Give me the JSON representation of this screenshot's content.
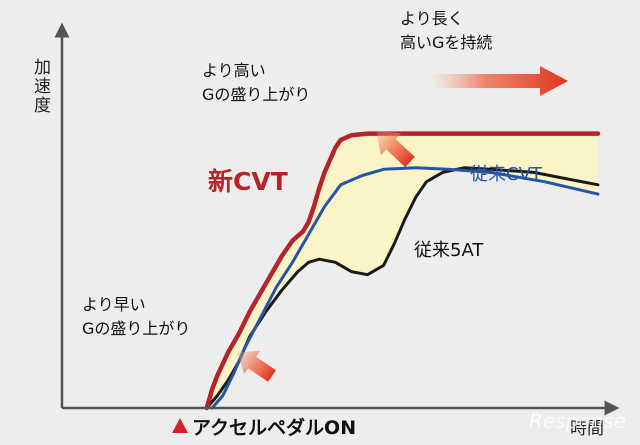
{
  "chart_data": {
    "type": "line",
    "ylabel": "加速度",
    "xlabel": "時間",
    "x_marker_label": "アクセルペダルON",
    "xlim": [
      0,
      100
    ],
    "ylim": [
      0,
      100
    ],
    "grid": false,
    "series": [
      {
        "name": "新CVT",
        "color": "#b5232b",
        "points": [
          [
            27,
            0
          ],
          [
            28,
            6
          ],
          [
            29,
            10.5
          ],
          [
            31,
            18
          ],
          [
            33,
            24
          ],
          [
            35,
            31
          ],
          [
            37,
            37
          ],
          [
            39,
            43
          ],
          [
            41,
            49
          ],
          [
            43,
            54
          ],
          [
            45,
            57
          ],
          [
            46,
            60
          ],
          [
            47,
            65
          ],
          [
            48,
            71
          ],
          [
            49,
            76
          ],
          [
            50,
            80
          ],
          [
            51,
            84
          ],
          [
            52,
            86.5
          ],
          [
            54,
            88
          ],
          [
            57,
            88.5
          ],
          [
            62,
            88.5
          ],
          [
            70,
            88.5
          ],
          [
            80,
            88.5
          ],
          [
            90,
            88.5
          ],
          [
            100,
            88.5
          ]
        ]
      },
      {
        "name": "従来CVT",
        "color": "#2455a6",
        "points": [
          [
            28,
            0
          ],
          [
            30,
            4
          ],
          [
            32,
            11
          ],
          [
            34,
            19
          ],
          [
            37,
            29
          ],
          [
            40,
            39
          ],
          [
            43,
            47
          ],
          [
            46,
            56
          ],
          [
            49,
            65
          ],
          [
            52,
            72
          ],
          [
            56,
            75
          ],
          [
            60,
            77
          ],
          [
            66,
            77.5
          ],
          [
            72,
            77
          ],
          [
            80,
            76
          ],
          [
            90,
            73
          ],
          [
            100,
            69
          ]
        ]
      },
      {
        "name": "従来5AT",
        "color": "#1a1a1a",
        "points": [
          [
            27,
            0
          ],
          [
            29,
            4
          ],
          [
            31,
            9
          ],
          [
            33,
            15
          ],
          [
            35,
            23
          ],
          [
            38,
            31
          ],
          [
            41,
            38
          ],
          [
            44,
            44
          ],
          [
            46,
            47
          ],
          [
            48,
            48
          ],
          [
            51,
            47
          ],
          [
            54,
            44
          ],
          [
            57,
            43
          ],
          [
            60,
            46
          ],
          [
            62,
            53
          ],
          [
            64,
            61
          ],
          [
            66,
            68
          ],
          [
            68,
            73
          ],
          [
            71,
            76
          ],
          [
            75,
            77.5
          ],
          [
            80,
            77
          ],
          [
            88,
            76
          ],
          [
            94,
            74
          ],
          [
            100,
            72
          ]
        ]
      }
    ],
    "band": {
      "color": "#fbf4c6",
      "between": [
        "新CVT",
        "従来CVT/従来5AT lower envelope"
      ]
    },
    "annotations": [
      {
        "text": "より早い",
        "text2": "Gの盛り上がり",
        "arrow_color": "#e0301e"
      },
      {
        "text": "より高い",
        "text2": "Gの盛り上がり",
        "arrow_color": "#e0301e"
      },
      {
        "text": "より長く",
        "text2": "高いGを持続",
        "arrow_color": "#e0301e"
      }
    ],
    "watermark": "Response"
  }
}
